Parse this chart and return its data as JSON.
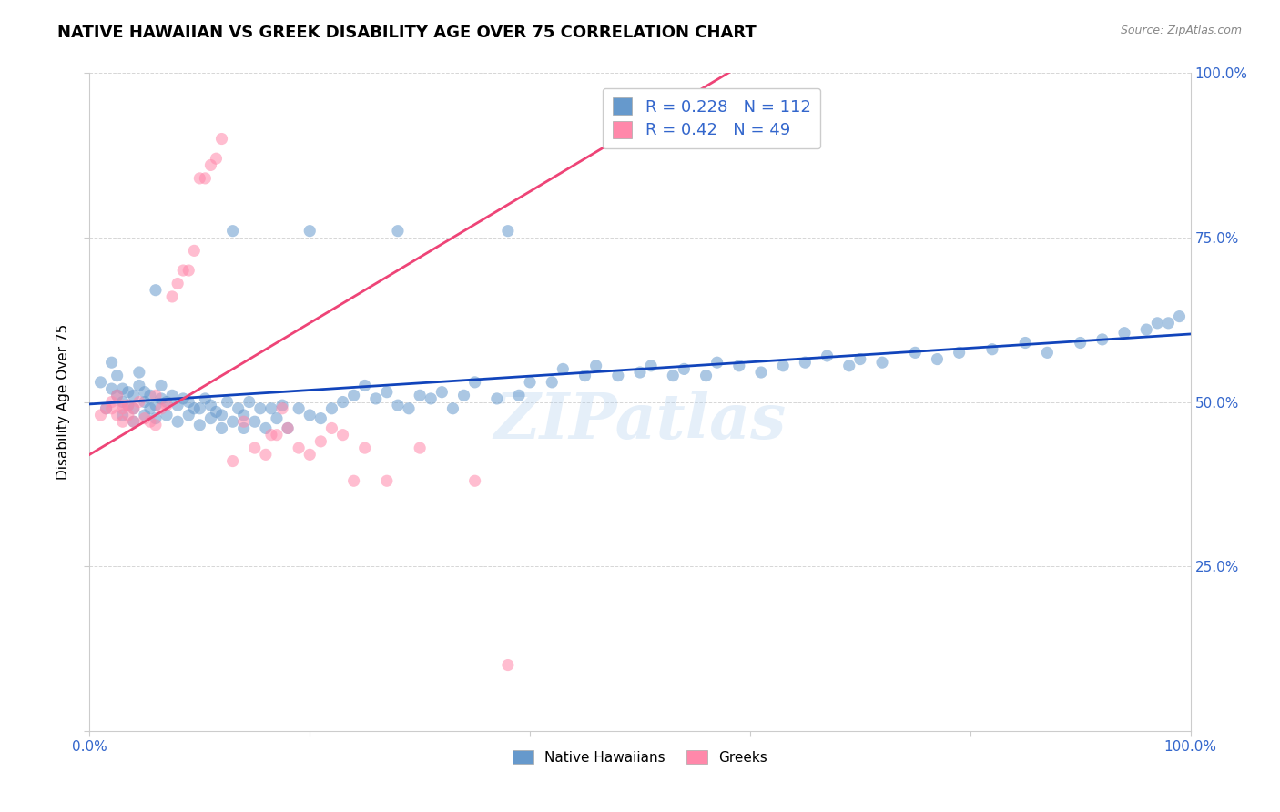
{
  "title": "NATIVE HAWAIIAN VS GREEK DISABILITY AGE OVER 75 CORRELATION CHART",
  "source": "Source: ZipAtlas.com",
  "ylabel": "Disability Age Over 75",
  "xlim": [
    0,
    1
  ],
  "ylim": [
    0,
    1
  ],
  "legend_label_blue": "Native Hawaiians",
  "legend_label_pink": "Greeks",
  "R_blue": 0.228,
  "N_blue": 112,
  "R_pink": 0.42,
  "N_pink": 49,
  "blue_color": "#6699CC",
  "pink_color": "#FF88AA",
  "blue_line_color": "#1144BB",
  "pink_line_color": "#EE4477",
  "text_blue": "#3366CC",
  "background_color": "#FFFFFF",
  "grid_color": "#CCCCCC",
  "watermark": "ZIPatlas",
  "title_fontsize": 13,
  "axis_fontsize": 11,
  "blue_scatter_x": [
    0.01,
    0.015,
    0.02,
    0.02,
    0.025,
    0.025,
    0.03,
    0.03,
    0.03,
    0.035,
    0.035,
    0.04,
    0.04,
    0.04,
    0.045,
    0.045,
    0.05,
    0.05,
    0.05,
    0.055,
    0.055,
    0.06,
    0.06,
    0.065,
    0.065,
    0.07,
    0.07,
    0.075,
    0.08,
    0.08,
    0.085,
    0.09,
    0.09,
    0.095,
    0.1,
    0.1,
    0.105,
    0.11,
    0.11,
    0.115,
    0.12,
    0.12,
    0.125,
    0.13,
    0.135,
    0.14,
    0.14,
    0.145,
    0.15,
    0.155,
    0.16,
    0.165,
    0.17,
    0.175,
    0.18,
    0.19,
    0.2,
    0.21,
    0.22,
    0.23,
    0.24,
    0.25,
    0.26,
    0.27,
    0.28,
    0.29,
    0.3,
    0.31,
    0.32,
    0.33,
    0.34,
    0.35,
    0.37,
    0.39,
    0.4,
    0.42,
    0.43,
    0.45,
    0.46,
    0.48,
    0.5,
    0.51,
    0.53,
    0.54,
    0.56,
    0.57,
    0.59,
    0.61,
    0.63,
    0.65,
    0.67,
    0.69,
    0.7,
    0.72,
    0.75,
    0.77,
    0.79,
    0.82,
    0.85,
    0.87,
    0.9,
    0.92,
    0.94,
    0.96,
    0.97,
    0.98,
    0.99,
    0.06,
    0.13,
    0.2,
    0.28,
    0.38
  ],
  "blue_scatter_y": [
    0.53,
    0.49,
    0.52,
    0.56,
    0.51,
    0.54,
    0.48,
    0.5,
    0.52,
    0.495,
    0.515,
    0.47,
    0.49,
    0.51,
    0.525,
    0.545,
    0.48,
    0.5,
    0.515,
    0.49,
    0.51,
    0.475,
    0.495,
    0.505,
    0.525,
    0.48,
    0.5,
    0.51,
    0.47,
    0.495,
    0.505,
    0.48,
    0.5,
    0.49,
    0.465,
    0.49,
    0.505,
    0.475,
    0.495,
    0.485,
    0.46,
    0.48,
    0.5,
    0.47,
    0.49,
    0.46,
    0.48,
    0.5,
    0.47,
    0.49,
    0.46,
    0.49,
    0.475,
    0.495,
    0.46,
    0.49,
    0.48,
    0.475,
    0.49,
    0.5,
    0.51,
    0.525,
    0.505,
    0.515,
    0.495,
    0.49,
    0.51,
    0.505,
    0.515,
    0.49,
    0.51,
    0.53,
    0.505,
    0.51,
    0.53,
    0.53,
    0.55,
    0.54,
    0.555,
    0.54,
    0.545,
    0.555,
    0.54,
    0.55,
    0.54,
    0.56,
    0.555,
    0.545,
    0.555,
    0.56,
    0.57,
    0.555,
    0.565,
    0.56,
    0.575,
    0.565,
    0.575,
    0.58,
    0.59,
    0.575,
    0.59,
    0.595,
    0.605,
    0.61,
    0.62,
    0.62,
    0.63,
    0.67,
    0.76,
    0.76,
    0.76,
    0.76
  ],
  "pink_scatter_x": [
    0.01,
    0.015,
    0.02,
    0.02,
    0.025,
    0.025,
    0.03,
    0.03,
    0.03,
    0.035,
    0.035,
    0.04,
    0.04,
    0.045,
    0.05,
    0.055,
    0.06,
    0.06,
    0.065,
    0.07,
    0.075,
    0.08,
    0.085,
    0.09,
    0.095,
    0.1,
    0.105,
    0.11,
    0.115,
    0.12,
    0.13,
    0.14,
    0.15,
    0.16,
    0.165,
    0.17,
    0.175,
    0.18,
    0.19,
    0.2,
    0.21,
    0.22,
    0.23,
    0.24,
    0.25,
    0.27,
    0.3,
    0.35,
    0.38
  ],
  "pink_scatter_y": [
    0.48,
    0.49,
    0.49,
    0.5,
    0.48,
    0.51,
    0.47,
    0.49,
    0.495,
    0.48,
    0.495,
    0.47,
    0.49,
    0.5,
    0.475,
    0.47,
    0.465,
    0.51,
    0.49,
    0.495,
    0.66,
    0.68,
    0.7,
    0.7,
    0.73,
    0.84,
    0.84,
    0.86,
    0.87,
    0.9,
    0.41,
    0.47,
    0.43,
    0.42,
    0.45,
    0.45,
    0.49,
    0.46,
    0.43,
    0.42,
    0.44,
    0.46,
    0.45,
    0.38,
    0.43,
    0.38,
    0.43,
    0.38,
    0.1
  ]
}
